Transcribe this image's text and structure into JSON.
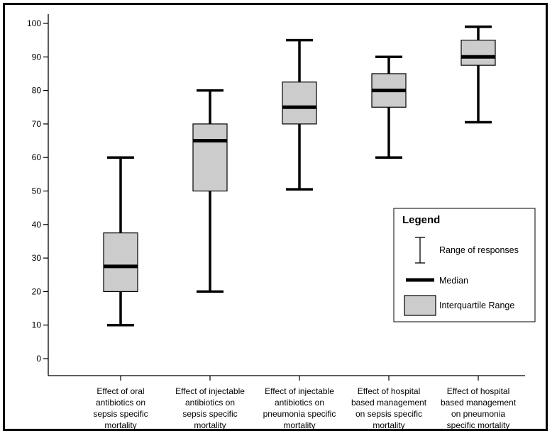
{
  "chart_data": {
    "type": "box",
    "ylim": [
      0,
      100
    ],
    "yticks": [
      0,
      10,
      20,
      30,
      40,
      50,
      60,
      70,
      80,
      90,
      100
    ],
    "categories": [
      [
        "Effect of oral",
        "antibiotics on",
        "sepsis specific",
        "mortality"
      ],
      [
        "Effect of injectable",
        "antibiotics on",
        "sepsis specific",
        "mortality"
      ],
      [
        "Effect of injectable",
        "antibiotics on",
        "pneumonia specific",
        "mortality"
      ],
      [
        "Effect of hospital",
        "based management",
        "on sepsis specific",
        "mortality"
      ],
      [
        "Effect of hospital",
        "based management",
        "on pneumonia",
        "specific mortality"
      ]
    ],
    "boxes": [
      {
        "min": 10,
        "q1": 20,
        "median": 27.5,
        "q3": 37.5,
        "max": 60
      },
      {
        "min": 20,
        "q1": 50,
        "median": 65,
        "q3": 70,
        "max": 80
      },
      {
        "min": 50.5,
        "q1": 70,
        "median": 75,
        "q3": 82.5,
        "max": 95
      },
      {
        "min": 60,
        "q1": 75,
        "median": 80,
        "q3": 85,
        "max": 90
      },
      {
        "min": 70.5,
        "q1": 87.5,
        "median": 90,
        "q3": 95,
        "max": 99
      }
    ],
    "box_fill": "#cccccc",
    "line_color": "#000000",
    "legend": {
      "title": "Legend",
      "position": "right",
      "entries": [
        {
          "symbol": "range",
          "label": "Range of responses"
        },
        {
          "symbol": "median",
          "label": "Median"
        },
        {
          "symbol": "iqr",
          "label": "Interquartile Range"
        }
      ]
    }
  }
}
